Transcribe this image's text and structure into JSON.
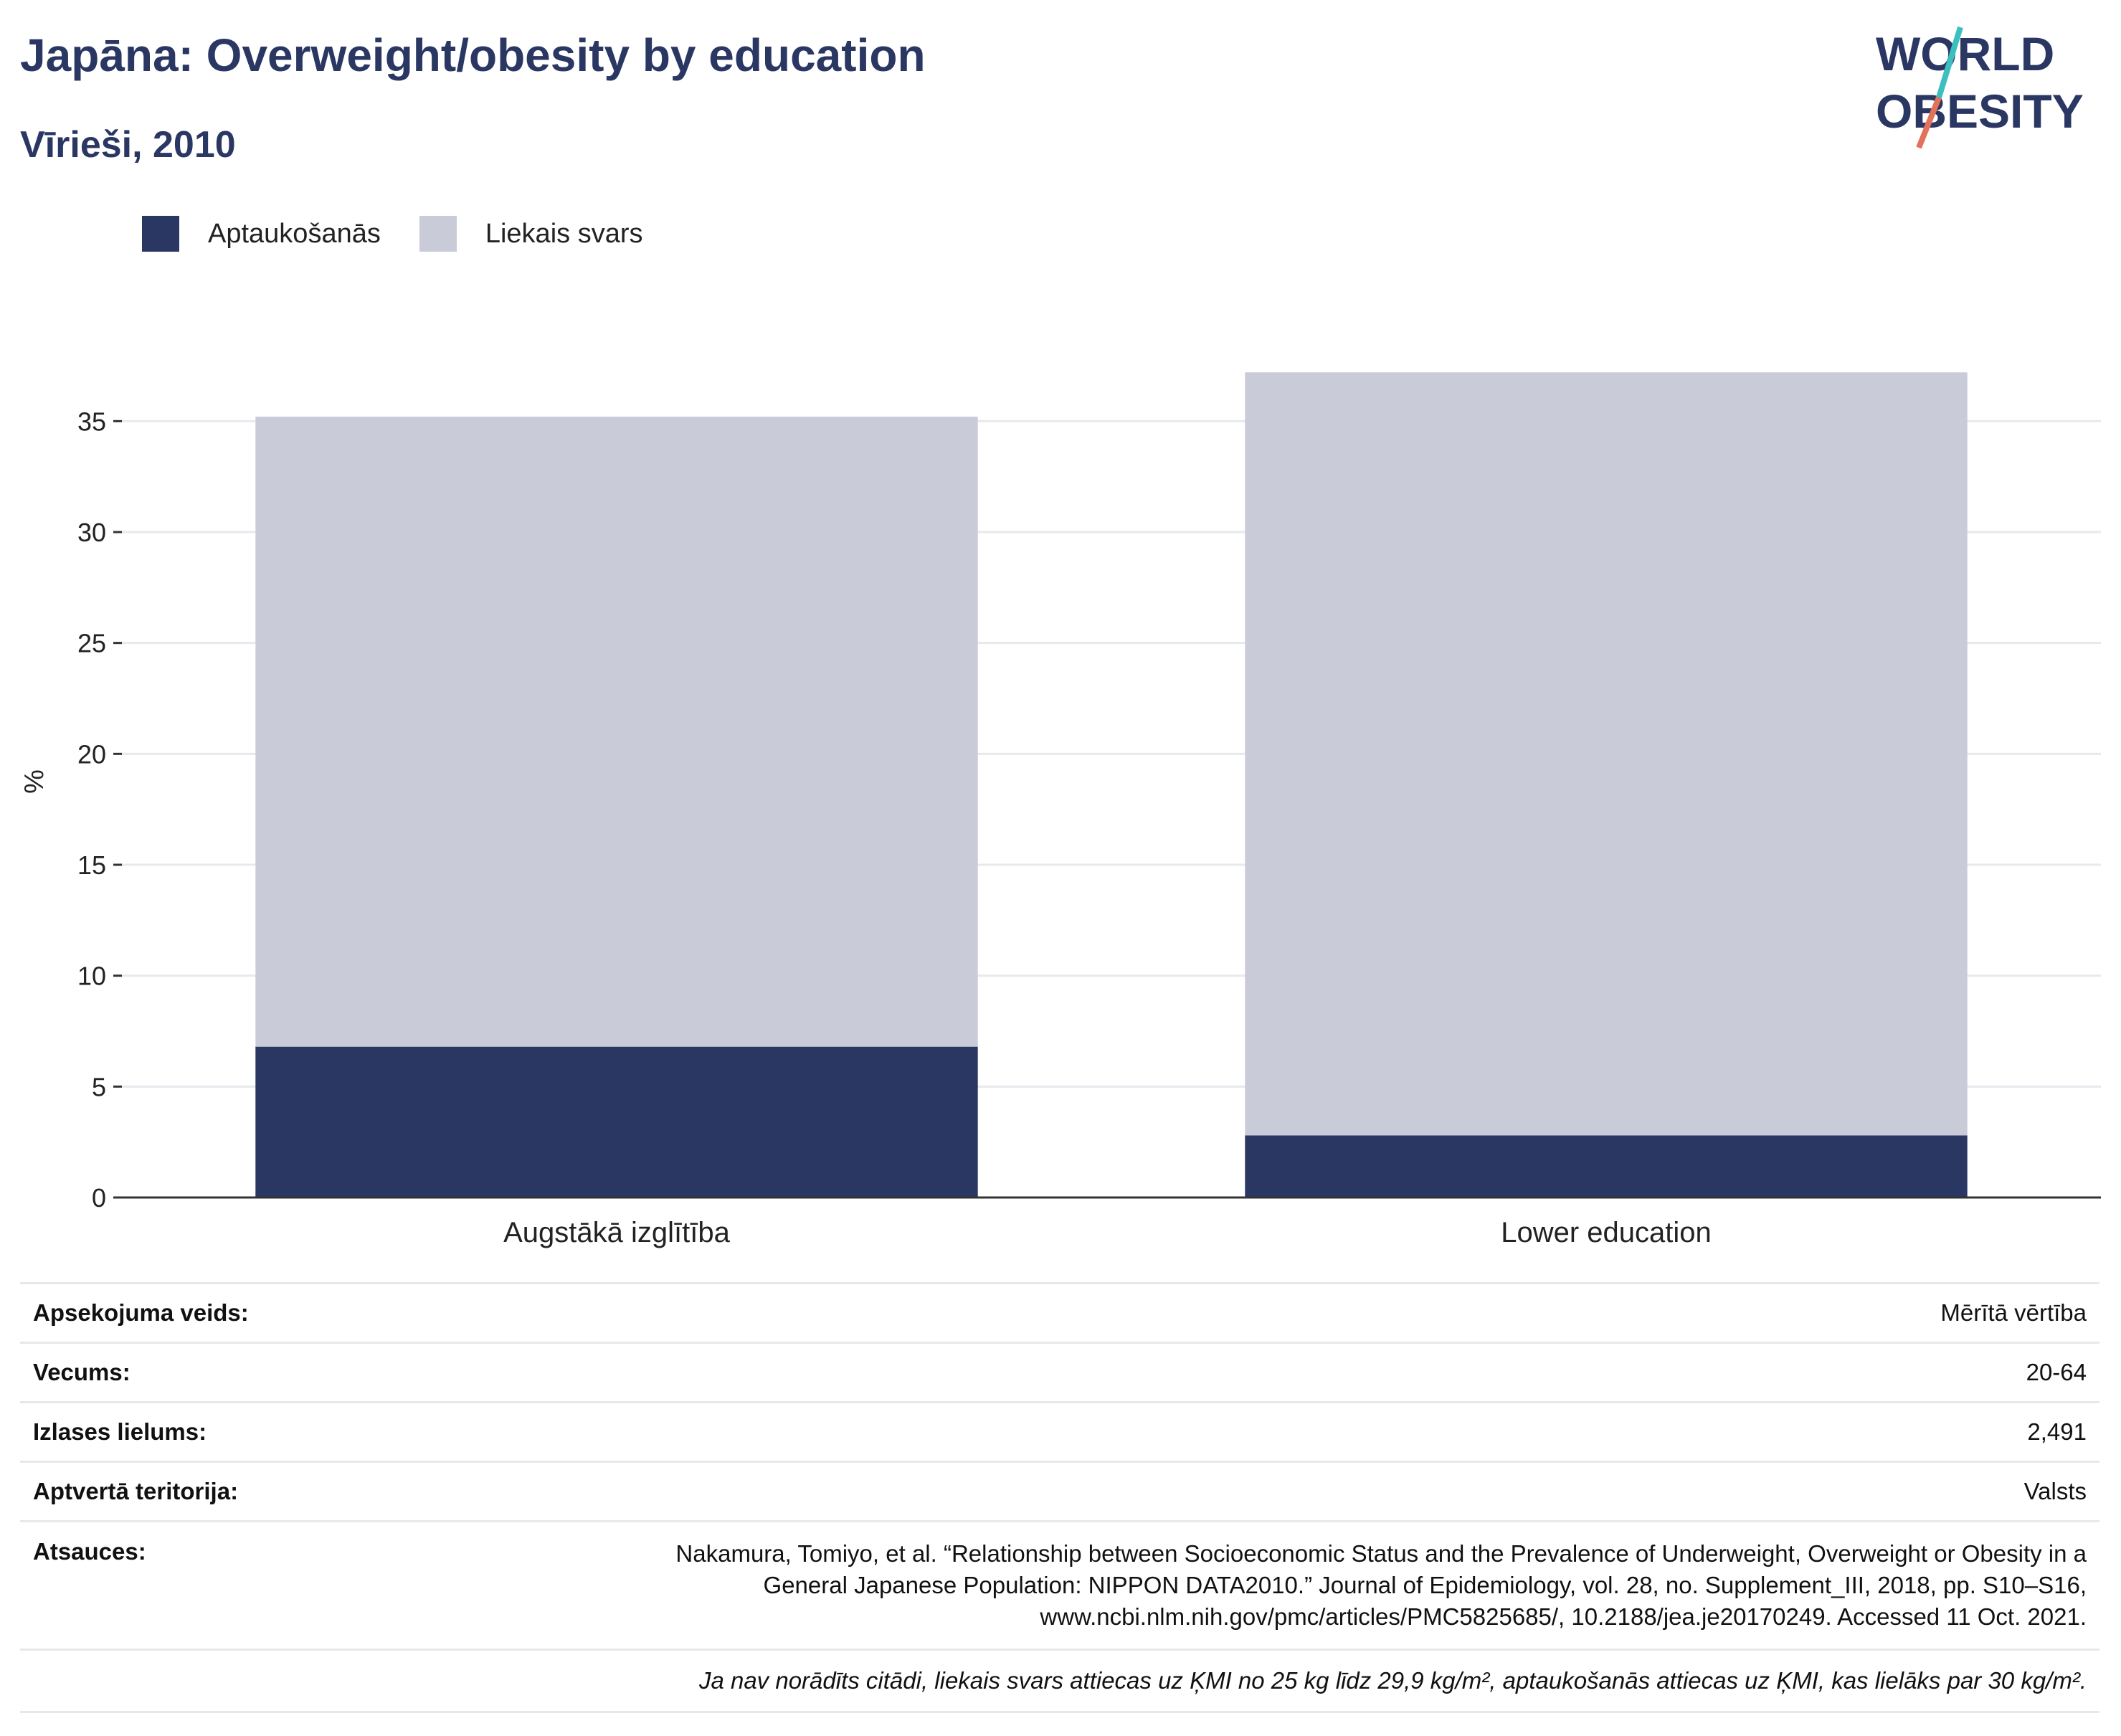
{
  "header": {
    "title": "Japāna: Overweight/obesity by education",
    "subtitle": "Vīrieši, 2010",
    "logo_line1": "WORLD",
    "logo_line2": "OBESITY"
  },
  "legend": [
    {
      "label": "Aptaukošanās",
      "color": "#2b3763"
    },
    {
      "label": "Liekais svars",
      "color": "#c9ccd8"
    }
  ],
  "chart_data": {
    "type": "bar",
    "stacked": true,
    "categories": [
      "Augstākā izglītība",
      "Lower education"
    ],
    "series": [
      {
        "name": "Aptaukošanās",
        "values": [
          6.8,
          2.8
        ],
        "color": "#2b3763"
      },
      {
        "name": "Liekais svars",
        "values": [
          28.4,
          34.4
        ],
        "color": "#c9ccd8"
      }
    ],
    "ylabel": "%",
    "ylim": [
      0,
      37.5
    ],
    "yticks": [
      0,
      5,
      10,
      15,
      20,
      25,
      30,
      35
    ],
    "grid": true
  },
  "info": {
    "survey_type_label": "Apsekojuma veids:",
    "survey_type_value": "Mērītā vērtība",
    "age_label": "Vecums:",
    "age_value": "20-64",
    "sample_label": "Izlases lielums:",
    "sample_value": "2,491",
    "coverage_label": "Aptvertā teritorija:",
    "coverage_value": "Valsts",
    "refs_label": "Atsauces:",
    "refs_line1": "Nakamura, Tomiyo, et al. “Relationship between Socioeconomic Status and the Prevalence of Underweight, Overweight or Obesity in a",
    "refs_line2": "General Japanese Population: NIPPON DATA2010.” Journal of Epidemiology, vol. 28, no. Supplement_III, 2018, pp. S10–S16,",
    "refs_line3": "www.ncbi.nlm.nih.gov/pmc/articles/PMC5825685/, 10.2188/jea.je20170249. Accessed 11 Oct. 2021.",
    "note": "Ja nav norādīts citādi, liekais svars attiecas uz ĶMI no 25 kg līdz 29,9 kg/m², aptaukošanās attiecas uz ĶMI, kas lielāks par 30 kg/m²."
  }
}
